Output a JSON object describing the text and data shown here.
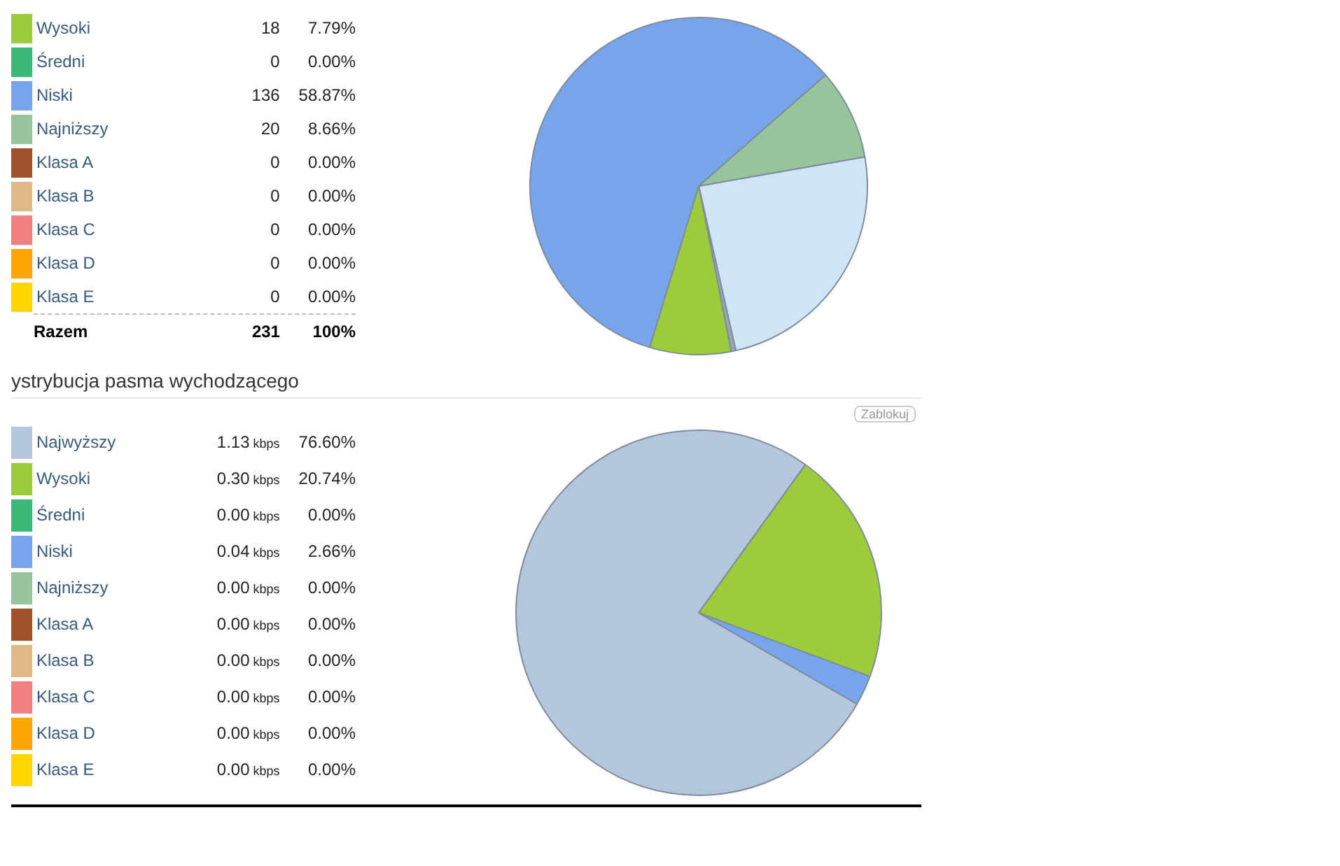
{
  "chart_data": [
    {
      "type": "pie",
      "legend": "left",
      "categories": [
        null,
        null,
        "Wysoki",
        "Średni",
        "Niski",
        "Najniższy",
        "Klasa A",
        "Klasa B",
        "Klasa C",
        "Klasa D",
        "Klasa E"
      ],
      "values": [
        24.25,
        0.43,
        7.79,
        0,
        58.87,
        8.66,
        0,
        0,
        0,
        0,
        0
      ],
      "value_labels": [
        null,
        null,
        "7.79%",
        "0.00%",
        "58.87%",
        "8.66%",
        "0.00%",
        "0.00%",
        "0.00%",
        "0.00%",
        "0.00%"
      ],
      "colors": [
        "#d0e4f8",
        "#9aa8b8",
        "#9ccc3c",
        "#3cb878",
        "#78a4ec",
        "#98c49c",
        "#a0522d",
        "#deb887",
        "#f08080",
        "#ffa500",
        "#ffd700"
      ],
      "annotations": [
        "18",
        "0",
        "136",
        "20",
        "0",
        "0",
        "0",
        "0",
        "0",
        "Razem",
        "231",
        "100%"
      ]
    },
    {
      "type": "pie",
      "legend": "left",
      "title": "ystrybucja pasma wychodzącego",
      "categories": [
        "Najwyższy",
        "Wysoki",
        "Średni",
        "Niski",
        "Najniższy",
        "Klasa A",
        "Klasa B",
        "Klasa C",
        "Klasa D",
        "Klasa E"
      ],
      "values": [
        76.6,
        20.74,
        0,
        2.66,
        0,
        0,
        0,
        0,
        0,
        0
      ],
      "value_labels": [
        "76.60%",
        "20.74%",
        "0.00%",
        "2.66%",
        "0.00%",
        "0.00%",
        "0.00%",
        "0.00%",
        "0.00%",
        "0.00%"
      ],
      "colors": [
        "#b4c6de",
        "#9ccc3c",
        "#3cb878",
        "#78a4ec",
        "#98c49c",
        "#a0522d",
        "#deb887",
        "#f08080",
        "#ffa500",
        "#ffd700"
      ],
      "annotations": [
        "1.13 kbps",
        "0.30 kbps",
        "0.00 kbps",
        "0.04 kbps",
        "0.00 kbps",
        "0.00 kbps",
        "0.00 kbps",
        "0.00 kbps",
        "0.00 kbps",
        "0.00 kbps",
        "Zablokuj"
      ]
    }
  ]
}
